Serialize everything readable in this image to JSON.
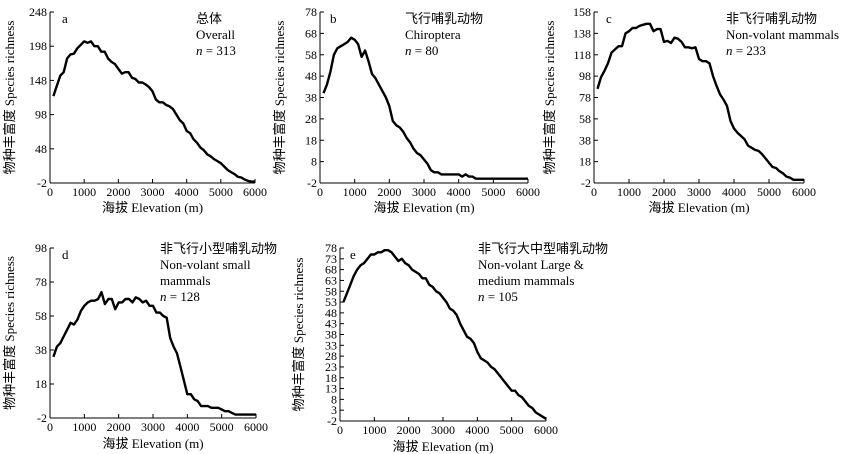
{
  "chart_data": [
    {
      "type": "line",
      "panel_letter": "a",
      "annotation": [
        "总体",
        "Overall"
      ],
      "n_label": "n",
      "n_text": " = 313",
      "xlabel": "海拔 Elevation (m)",
      "ylabel": "物种丰富度 Species richness",
      "xlim": [
        0,
        6000
      ],
      "ylim": [
        -2,
        248
      ],
      "xticks": [
        "0",
        "1000",
        "2000",
        "3000",
        "4000",
        "5000",
        "6000"
      ],
      "yticks": [
        "248",
        "198",
        "148",
        "98",
        "48",
        "-2"
      ],
      "series": [
        {
          "x": [
            100,
            200,
            300,
            400,
            500,
            600,
            700,
            800,
            900,
            1000,
            1100,
            1200,
            1300,
            1400,
            1500,
            1600,
            1700,
            1800,
            1900,
            2000,
            2100,
            2200,
            2300,
            2400,
            2500,
            2600,
            2700,
            2800,
            2900,
            3000,
            3100,
            3200,
            3300,
            3400,
            3500,
            3600,
            3700,
            3800,
            3900,
            4000,
            4100,
            4200,
            4300,
            4400,
            4500,
            4600,
            4700,
            4800,
            4900,
            5000,
            5100,
            5200,
            5300,
            5400,
            5500,
            5600,
            5700,
            5800,
            5900,
            6000
          ],
          "y": [
            125,
            140,
            155,
            160,
            180,
            186,
            187,
            195,
            200,
            205,
            203,
            205,
            198,
            198,
            190,
            190,
            180,
            175,
            172,
            165,
            158,
            160,
            160,
            152,
            150,
            145,
            145,
            142,
            138,
            132,
            120,
            116,
            116,
            112,
            110,
            106,
            98,
            90,
            85,
            74,
            71,
            62,
            57,
            50,
            46,
            40,
            37,
            33,
            30,
            27,
            22,
            17,
            14,
            11,
            7,
            6,
            3,
            1,
            0,
            0
          ]
        }
      ]
    },
    {
      "type": "line",
      "panel_letter": "b",
      "annotation": [
        "飞行哺乳动物",
        "Chiroptera"
      ],
      "n_label": "n",
      "n_text": " = 80",
      "xlabel": "海拔 Elevation (m)",
      "ylabel": "物种丰富度 Species richness",
      "xlim": [
        0,
        6000
      ],
      "ylim": [
        -2,
        78
      ],
      "xticks": [
        "0",
        "1000",
        "2000",
        "3000",
        "4000",
        "5000",
        "6000"
      ],
      "yticks": [
        "78",
        "68",
        "58",
        "48",
        "38",
        "28",
        "18",
        "8",
        "-2"
      ],
      "series": [
        {
          "x": [
            100,
            200,
            300,
            400,
            500,
            600,
            700,
            800,
            900,
            1000,
            1100,
            1200,
            1300,
            1400,
            1500,
            1600,
            1700,
            1800,
            1900,
            2000,
            2100,
            2200,
            2300,
            2400,
            2500,
            2600,
            2700,
            2800,
            2900,
            3000,
            3100,
            3200,
            3300,
            3400,
            3500,
            3600,
            3700,
            3800,
            3900,
            4000,
            4100,
            4200,
            4300,
            4400,
            4500,
            4600,
            4700,
            4800,
            4900,
            5000,
            5100,
            5200,
            5300,
            5400,
            5500,
            5600,
            5700,
            5800,
            5900,
            6000
          ],
          "y": [
            40,
            44,
            50,
            58,
            61,
            62,
            63,
            64,
            66,
            65,
            63,
            57,
            60,
            55,
            49,
            47,
            44,
            41,
            38,
            34,
            27,
            25,
            24,
            22,
            19,
            17,
            14,
            12,
            11,
            9,
            7,
            4,
            3,
            3,
            2,
            2,
            2,
            2,
            2,
            2,
            1,
            2,
            1,
            1,
            0,
            0,
            0,
            0,
            0,
            0,
            0,
            0,
            0,
            0,
            0,
            0,
            0,
            0,
            0,
            0
          ]
        }
      ]
    },
    {
      "type": "line",
      "panel_letter": "c",
      "annotation": [
        "非飞行哺乳动物",
        "Non-volant mammals"
      ],
      "n_label": "n",
      "n_text": " = 233",
      "xlabel": "海拔 Elevation (m)",
      "ylabel": "物种丰富度 Species richness",
      "xlim": [
        0,
        6000
      ],
      "ylim": [
        -2,
        158
      ],
      "xticks": [
        "0",
        "1000",
        "2000",
        "3000",
        "4000",
        "5000",
        "6000"
      ],
      "yticks": [
        "158",
        "138",
        "118",
        "98",
        "78",
        "58",
        "38",
        "18",
        "-2"
      ],
      "series": [
        {
          "x": [
            100,
            200,
            300,
            400,
            500,
            600,
            700,
            800,
            900,
            1000,
            1100,
            1200,
            1300,
            1400,
            1500,
            1600,
            1700,
            1800,
            1900,
            2000,
            2100,
            2200,
            2300,
            2400,
            2500,
            2600,
            2700,
            2800,
            2900,
            3000,
            3100,
            3200,
            3300,
            3400,
            3500,
            3600,
            3700,
            3800,
            3900,
            4000,
            4100,
            4200,
            4300,
            4400,
            4500,
            4600,
            4700,
            4800,
            4900,
            5000,
            5100,
            5200,
            5300,
            5400,
            5500,
            5600,
            5700,
            5800,
            5900,
            6000
          ],
          "y": [
            86,
            97,
            103,
            110,
            120,
            123,
            126,
            126,
            138,
            140,
            143,
            143,
            145,
            146,
            147,
            147,
            140,
            142,
            142,
            130,
            131,
            129,
            134,
            133,
            130,
            125,
            125,
            124,
            125,
            114,
            112,
            112,
            110,
            98,
            89,
            81,
            76,
            70,
            56,
            49,
            45,
            42,
            39,
            33,
            31,
            29,
            28,
            25,
            21,
            17,
            13,
            12,
            9,
            7,
            4,
            3,
            1,
            1,
            1,
            1
          ]
        }
      ]
    },
    {
      "type": "line",
      "panel_letter": "d",
      "annotation": [
        "非飞行小型哺乳动物",
        "Non-volant small",
        "mammals"
      ],
      "n_label": "n",
      "n_text": " = 128",
      "xlabel": "海拔 Elevation (m)",
      "ylabel": "物种丰富度 Species richness",
      "xlim": [
        0,
        6000
      ],
      "ylim": [
        -2,
        98
      ],
      "xticks": [
        "0",
        "1000",
        "2000",
        "3000",
        "4000",
        "5000",
        "6000"
      ],
      "yticks": [
        "98",
        "78",
        "58",
        "38",
        "18",
        "-2"
      ],
      "series": [
        {
          "x": [
            100,
            200,
            300,
            400,
            500,
            600,
            700,
            800,
            900,
            1000,
            1100,
            1200,
            1300,
            1400,
            1500,
            1600,
            1700,
            1800,
            1900,
            2000,
            2100,
            2200,
            2300,
            2400,
            2500,
            2600,
            2700,
            2800,
            2900,
            3000,
            3100,
            3200,
            3300,
            3400,
            3500,
            3600,
            3700,
            3800,
            3900,
            4000,
            4100,
            4200,
            4300,
            4400,
            4500,
            4600,
            4700,
            4800,
            4900,
            5000,
            5100,
            5200,
            5300,
            5400,
            5500,
            5600,
            5700,
            5800,
            5900,
            6000
          ],
          "y": [
            34,
            40,
            42,
            46,
            50,
            54,
            53,
            56,
            61,
            64,
            66,
            67,
            67,
            68,
            72,
            65,
            68,
            68,
            62,
            66,
            66,
            68,
            68,
            66,
            69,
            68,
            66,
            67,
            64,
            64,
            60,
            60,
            58,
            57,
            45,
            40,
            36,
            28,
            20,
            12,
            12,
            9,
            8,
            5,
            5,
            5,
            4,
            4,
            4,
            3,
            2,
            2,
            1,
            0,
            0,
            0,
            0,
            0,
            0,
            0
          ]
        }
      ]
    },
    {
      "type": "line",
      "panel_letter": "e",
      "annotation": [
        "非飞行大中型哺乳动物",
        "Non-volant Large &",
        "medium mammals"
      ],
      "n_label": "n",
      "n_text": " = 105",
      "xlabel": "海拔 Elevation (m)",
      "ylabel": "物种丰富度 Species richness",
      "xlim": [
        0,
        6000
      ],
      "ylim": [
        -2,
        78
      ],
      "xticks": [
        "0",
        "1000",
        "2000",
        "3000",
        "4000",
        "5000",
        "6000"
      ],
      "yticks": [
        "78",
        "73",
        "68",
        "63",
        "58",
        "53",
        "48",
        "43",
        "38",
        "33",
        "28",
        "23",
        "18",
        "13",
        "8",
        "3",
        "-2"
      ],
      "series": [
        {
          "x": [
            100,
            200,
            300,
            400,
            500,
            600,
            700,
            800,
            900,
            1000,
            1100,
            1200,
            1300,
            1400,
            1500,
            1600,
            1700,
            1800,
            1900,
            2000,
            2100,
            2200,
            2300,
            2400,
            2500,
            2600,
            2700,
            2800,
            2900,
            3000,
            3100,
            3200,
            3300,
            3400,
            3500,
            3600,
            3700,
            3800,
            3900,
            4000,
            4100,
            4200,
            4300,
            4400,
            4500,
            4600,
            4700,
            4800,
            4900,
            5000,
            5100,
            5200,
            5300,
            5400,
            5500,
            5600,
            5700,
            5800,
            5900,
            6000
          ],
          "y": [
            53,
            57,
            61,
            65,
            68,
            70,
            71,
            73,
            75,
            75,
            76,
            76,
            77,
            77,
            76,
            74,
            72,
            73,
            71,
            70,
            68,
            67,
            66,
            64,
            64,
            61,
            60,
            58,
            57,
            55,
            53,
            50,
            49,
            47,
            43,
            40,
            37,
            36,
            34,
            30,
            27,
            26,
            25,
            23,
            22,
            20,
            18,
            16,
            14,
            12,
            12,
            10,
            9,
            7,
            5,
            4,
            2,
            1,
            0,
            -1
          ]
        }
      ]
    }
  ]
}
